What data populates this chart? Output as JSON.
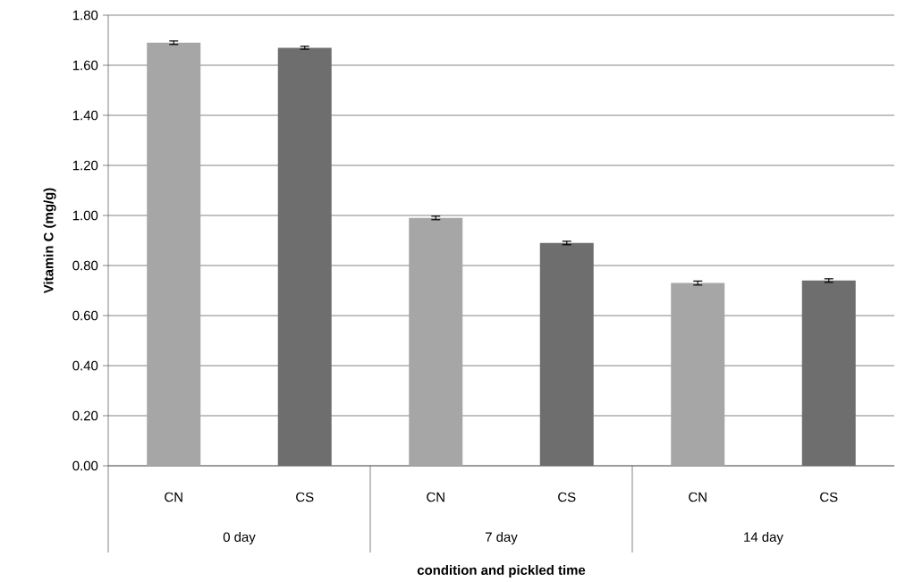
{
  "chart_data": {
    "type": "bar",
    "xlabel": "condition and pickled time",
    "ylabel": "Vitamin C (mg/g)",
    "categories": [
      "0 day",
      "7 day",
      "14 day"
    ],
    "series": [
      {
        "name": "CN",
        "color": "#a6a6a6",
        "values": [
          1.69,
          0.99,
          0.73
        ],
        "errors": [
          0.007,
          0.007,
          0.008
        ]
      },
      {
        "name": "CS",
        "color": "#6e6e6e",
        "values": [
          1.67,
          0.89,
          0.74
        ],
        "errors": [
          0.006,
          0.007,
          0.007
        ]
      }
    ],
    "ylim": [
      0,
      1.8
    ],
    "yticks": [
      {
        "value": 0,
        "label": "0.00"
      },
      {
        "value": 0.2,
        "label": "0.20"
      },
      {
        "value": 0.4,
        "label": "0.40"
      },
      {
        "value": 0.6,
        "label": "0.60"
      },
      {
        "value": 0.8,
        "label": "0.80"
      },
      {
        "value": 1.0,
        "label": "1.00"
      },
      {
        "value": 1.2,
        "label": "1.20"
      },
      {
        "value": 1.4,
        "label": "1.40"
      },
      {
        "value": 1.6,
        "label": "1.60"
      },
      {
        "value": 1.8,
        "label": "1.80"
      }
    ],
    "grid": "y"
  }
}
